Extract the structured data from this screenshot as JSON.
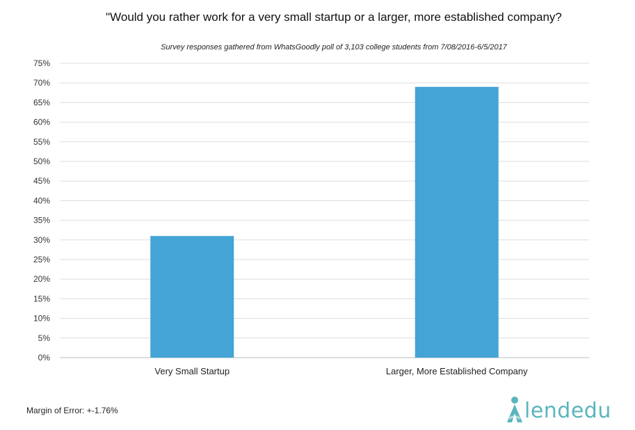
{
  "chart_data": {
    "type": "bar",
    "title": "\"Would you rather work for a very small startup or a larger, more established company?",
    "subtitle": "Survey responses gathered from WhatsGoodly poll of 3,103 college students from 7/08/2016-6/5/2017",
    "categories": [
      "Very Small Startup",
      "Larger, More Established Company"
    ],
    "values": [
      31,
      69
    ],
    "value_unit": "%",
    "ylim": [
      0,
      75
    ],
    "yticks": [
      0,
      5,
      10,
      15,
      20,
      25,
      30,
      35,
      40,
      45,
      50,
      55,
      60,
      65,
      70,
      75
    ],
    "ytick_labels": [
      "0%",
      "5%",
      "10%",
      "15%",
      "20%",
      "25%",
      "30%",
      "35%",
      "40%",
      "45%",
      "50%",
      "55%",
      "60%",
      "65%",
      "70%",
      "75%"
    ],
    "grid": true,
    "bar_color": "#44a4d5",
    "grid_color": "#dddddd"
  },
  "footer": {
    "margin_of_error": "Margin of Error: +-1.76%"
  },
  "logo": {
    "text": "lendedu",
    "color": "#5bb5bd"
  }
}
